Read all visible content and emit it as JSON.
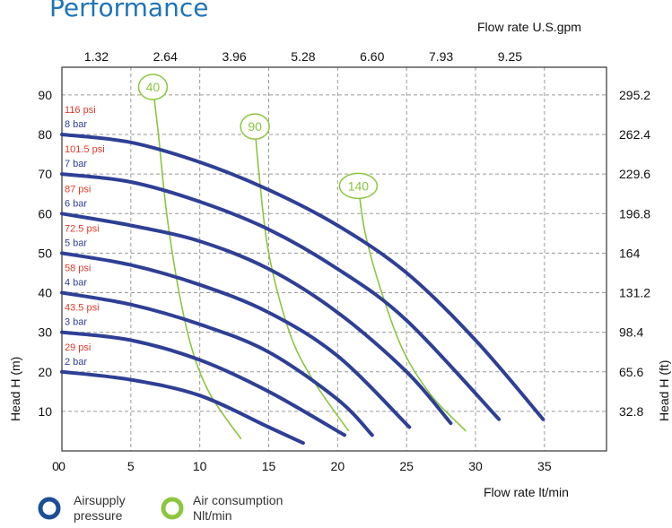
{
  "chart_data": {
    "type": "line",
    "title": "Performance",
    "x_bottom": {
      "label": "Flow rate  lt/min",
      "ticks": [
        0,
        5,
        10,
        15,
        20,
        25,
        30,
        35
      ],
      "range": [
        0,
        39.5
      ]
    },
    "x_top": {
      "label": "Flow rate U.S.gpm",
      "ticks": [
        "1.32",
        "2.64",
        "3.96",
        "5.28",
        "6.60",
        "7.93",
        "9.25"
      ]
    },
    "y_left": {
      "label": "Head H (m)",
      "ticks": [
        10,
        20,
        30,
        40,
        50,
        60,
        70,
        80,
        90
      ],
      "range": [
        0,
        97
      ]
    },
    "y_right": {
      "label": "Head H (ft)",
      "ticks": [
        "32.8",
        "65.6",
        "98.4",
        "131.2",
        "164",
        "196.8",
        "229.6",
        "262.4",
        "295.2"
      ]
    },
    "grid": true,
    "pressure_series": [
      {
        "bar": "2 bar",
        "psi": "29 psi",
        "x": [
          0,
          5,
          10,
          15,
          17.5
        ],
        "y": [
          20,
          18,
          14,
          6,
          2
        ]
      },
      {
        "bar": "3 bar",
        "psi": "43.5 psi",
        "x": [
          0,
          5,
          10,
          15,
          20.5
        ],
        "y": [
          30,
          28,
          23,
          15,
          4
        ]
      },
      {
        "bar": "4 bar",
        "psi": "58 psi",
        "x": [
          0,
          5,
          10,
          15,
          20,
          22.5
        ],
        "y": [
          40,
          37,
          32,
          25,
          13,
          4
        ]
      },
      {
        "bar": "5 bar",
        "psi": "72.5 psi",
        "x": [
          0,
          5,
          10,
          15,
          20,
          25.2
        ],
        "y": [
          50,
          47,
          42,
          35,
          24,
          6
        ]
      },
      {
        "bar": "6 bar",
        "psi": "87 psi",
        "x": [
          0,
          5,
          10,
          15,
          20,
          25,
          28.2
        ],
        "y": [
          60,
          57,
          53,
          46,
          35,
          20,
          7
        ]
      },
      {
        "bar": "7 bar",
        "psi": "101.5 psi",
        "x": [
          0,
          5,
          10,
          15,
          20,
          25,
          31.7
        ],
        "y": [
          70,
          68,
          63,
          56,
          46,
          33,
          8
        ]
      },
      {
        "bar": "8 bar",
        "psi": "116 psi",
        "x": [
          0,
          5,
          10,
          15,
          20,
          25,
          30,
          34.9
        ],
        "y": [
          80,
          78,
          73,
          66,
          57,
          45,
          28,
          8
        ]
      }
    ],
    "air_series": [
      {
        "name": "40",
        "x": [
          6.6,
          7,
          7.6,
          8.5,
          9.5,
          10.8,
          13.0
        ],
        "y": [
          92,
          80,
          60,
          40,
          25,
          14,
          3
        ]
      },
      {
        "name": "90",
        "x": [
          14.0,
          14.3,
          15.0,
          16.5,
          18.2,
          20.8
        ],
        "y": [
          82,
          70,
          50,
          30,
          18,
          5
        ]
      },
      {
        "name": "140",
        "x": [
          21.5,
          22.0,
          23.2,
          24.8,
          26.8,
          29.3
        ],
        "y": [
          67,
          55,
          40,
          25,
          14,
          5
        ]
      }
    ],
    "colors": {
      "pressure": "#2e3f95",
      "air": "#8cc63f",
      "psi_label": "#e03a2a",
      "bar_label": "#2e3f95"
    }
  },
  "legend": {
    "pressure": [
      "Airsupply",
      "pressure"
    ],
    "air": [
      "Air consumption",
      "Nlt/min"
    ]
  }
}
